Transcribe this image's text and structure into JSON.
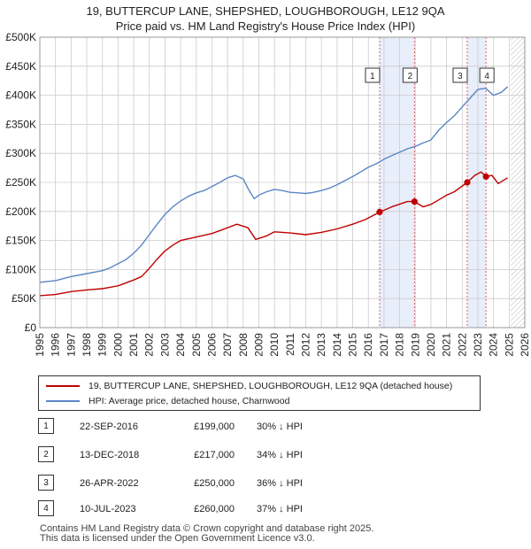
{
  "title_line1": "19, BUTTERCUP LANE, SHEPSHED, LOUGHBOROUGH, LE12 9QA",
  "title_line2": "Price paid vs. HM Land Registry's House Price Index (HPI)",
  "colors": {
    "property": "#c00000",
    "hpi": "#5b86c5",
    "shade": "#e8eefa",
    "vline": "#e06060",
    "grid": "#cccccc"
  },
  "legend": {
    "property_label": "19, BUTTERCUP LANE, SHEPSHED, LOUGHBOROUGH, LE12 9QA (detached house)",
    "hpi_label": "HPI: Average price, detached house, Charnwood"
  },
  "transactions": [
    {
      "num": "1",
      "date": "22-SEP-2016",
      "price": "£199,000",
      "hpi": "30% ↓ HPI"
    },
    {
      "num": "2",
      "date": "13-DEC-2018",
      "price": "£217,000",
      "hpi": "34% ↓ HPI"
    },
    {
      "num": "3",
      "date": "26-APR-2022",
      "price": "£250,000",
      "hpi": "36% ↓ HPI"
    },
    {
      "num": "4",
      "date": "10-JUL-2023",
      "price": "£260,000",
      "hpi": "37% ↓ HPI"
    }
  ],
  "footer_line1": "Contains HM Land Registry data © Crown copyright and database right 2025.",
  "footer_line2": "This data is licensed under the Open Government Licence v3.0.",
  "chart_data": {
    "type": "line",
    "title": "Price paid vs. HM Land Registry's House Price Index (HPI)",
    "xlim": [
      1995,
      2026
    ],
    "ylim": [
      0,
      500000
    ],
    "x_ticks": [
      "1995",
      "1996",
      "1997",
      "1998",
      "1999",
      "2000",
      "2001",
      "2002",
      "2003",
      "2004",
      "2005",
      "2006",
      "2007",
      "2008",
      "2009",
      "2010",
      "2011",
      "2012",
      "2013",
      "2014",
      "2015",
      "2016",
      "2017",
      "2018",
      "2019",
      "2020",
      "2021",
      "2022",
      "2023",
      "2024",
      "2025",
      "2026"
    ],
    "y_ticks": [
      {
        "value": 0,
        "label": "£0"
      },
      {
        "value": 50000,
        "label": "£50K"
      },
      {
        "value": 100000,
        "label": "£100K"
      },
      {
        "value": 150000,
        "label": "£150K"
      },
      {
        "value": 200000,
        "label": "£200K"
      },
      {
        "value": 250000,
        "label": "£250K"
      },
      {
        "value": 300000,
        "label": "£300K"
      },
      {
        "value": 350000,
        "label": "£350K"
      },
      {
        "value": 400000,
        "label": "£400K"
      },
      {
        "value": 450000,
        "label": "£450K"
      },
      {
        "value": 500000,
        "label": "£500K"
      }
    ],
    "shaded_ranges": [
      [
        2016.72,
        2018.95
      ],
      [
        2022.32,
        2023.52
      ]
    ],
    "forecast_from": 2025.1,
    "series": [
      {
        "name": "HPI: Average price, detached house, Charnwood",
        "x": [
          1995.0,
          1996.0,
          1997.0,
          1998.0,
          1999.0,
          1999.5,
          2000.0,
          2000.5,
          2001.0,
          2001.5,
          2002.0,
          2002.5,
          2003.0,
          2003.5,
          2004.0,
          2004.5,
          2005.0,
          2005.5,
          2006.0,
          2006.5,
          2007.0,
          2007.5,
          2008.0,
          2008.3,
          2008.7,
          2009.0,
          2009.5,
          2010.0,
          2010.5,
          2011.0,
          2011.5,
          2012.0,
          2012.5,
          2013.0,
          2013.5,
          2014.0,
          2014.5,
          2015.0,
          2015.5,
          2016.0,
          2016.5,
          2017.0,
          2017.5,
          2018.0,
          2018.5,
          2019.0,
          2019.5,
          2020.0,
          2020.5,
          2021.0,
          2021.5,
          2022.0,
          2022.5,
          2023.0,
          2023.5,
          2024.0,
          2024.5,
          2024.9
        ],
        "values": [
          78000,
          81000,
          88000,
          93000,
          98000,
          103000,
          110000,
          117000,
          128000,
          142000,
          160000,
          178000,
          195000,
          208000,
          218000,
          226000,
          232000,
          236000,
          243000,
          250000,
          258000,
          262000,
          256000,
          240000,
          222000,
          228000,
          234000,
          238000,
          236000,
          233000,
          232000,
          231000,
          233000,
          236000,
          240000,
          246000,
          253000,
          260000,
          268000,
          276000,
          282000,
          290000,
          296000,
          302000,
          308000,
          312000,
          318000,
          323000,
          340000,
          353000,
          365000,
          380000,
          395000,
          410000,
          412000,
          400000,
          405000,
          415000
        ]
      },
      {
        "name": "19, BUTTERCUP LANE, SHEPSHED, LOUGHBOROUGH, LE12 9QA (detached house)",
        "x": [
          1995.0,
          1996.0,
          1997.0,
          1998.0,
          1999.0,
          2000.0,
          2001.0,
          2001.5,
          2002.0,
          2002.5,
          2003.0,
          2003.5,
          2004.0,
          2005.0,
          2006.0,
          2007.0,
          2007.6,
          2008.3,
          2008.8,
          2009.5,
          2010.0,
          2011.0,
          2012.0,
          2013.0,
          2014.0,
          2015.0,
          2015.8,
          2016.72,
          2017.5,
          2018.5,
          2018.95,
          2019.5,
          2020.0,
          2020.5,
          2021.0,
          2021.5,
          2022.32,
          2022.8,
          2023.2,
          2023.52,
          2023.9,
          2024.3,
          2024.9
        ],
        "values": [
          55000,
          57000,
          62000,
          65000,
          67000,
          72000,
          82000,
          88000,
          102000,
          118000,
          132000,
          142000,
          150000,
          156000,
          162000,
          172000,
          178000,
          172000,
          152000,
          158000,
          165000,
          163000,
          160000,
          164000,
          170000,
          178000,
          186000,
          199000,
          208000,
          217000,
          217000,
          208000,
          212000,
          220000,
          228000,
          234000,
          250000,
          262000,
          268000,
          260000,
          262000,
          248000,
          258000
        ]
      }
    ],
    "markers": [
      {
        "label": "1",
        "x": 2016.72,
        "value": 199000
      },
      {
        "label": "2",
        "x": 2018.95,
        "value": 217000
      },
      {
        "label": "3",
        "x": 2022.32,
        "value": 250000
      },
      {
        "label": "4",
        "x": 2023.52,
        "value": 260000
      }
    ]
  }
}
